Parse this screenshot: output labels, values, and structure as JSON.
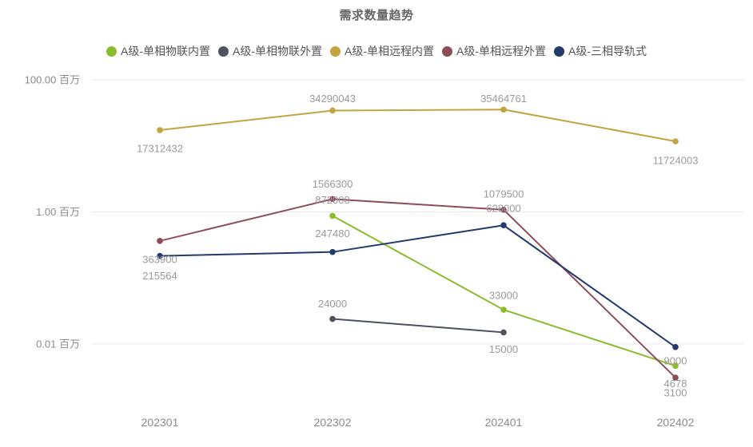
{
  "title": "需求数量趋势",
  "chart_data": {
    "type": "line",
    "title": "需求数量趋势",
    "legend_position": "top",
    "grid": true,
    "x_axis": {
      "categories": [
        "202301",
        "202302",
        "202401",
        "202402"
      ]
    },
    "y_axis": {
      "scale": "log",
      "unit": "百万",
      "tick_labels": [
        "100.00 百万",
        "1.00 百万",
        "0.01 百万"
      ],
      "tick_values": [
        100000000,
        1000000,
        10000
      ]
    },
    "series": [
      {
        "name": "A级-单相物联内置",
        "color": "#8CBB2E",
        "values": [
          null,
          872000,
          33000,
          4678
        ]
      },
      {
        "name": "A级-单相物联外置",
        "color": "#4C535D",
        "values": [
          null,
          24000,
          15000,
          null
        ]
      },
      {
        "name": "A级-单相远程内置",
        "color": "#C3A43F",
        "values": [
          17312432,
          34290043,
          35464761,
          11724003
        ]
      },
      {
        "name": "A级-单相远程外置",
        "color": "#8E4D5B",
        "values": [
          363900,
          1566300,
          1079500,
          3100
        ]
      },
      {
        "name": "A级-三相导轨式",
        "color": "#243A6C",
        "values": [
          215564,
          247480,
          628000,
          9000
        ]
      }
    ],
    "colors": {
      "grid_line": "#E9E9E9",
      "axis_label": "#8C8C8C",
      "data_label": "#9A9A9A",
      "title": "#666666",
      "legend_text": "#555555"
    }
  }
}
